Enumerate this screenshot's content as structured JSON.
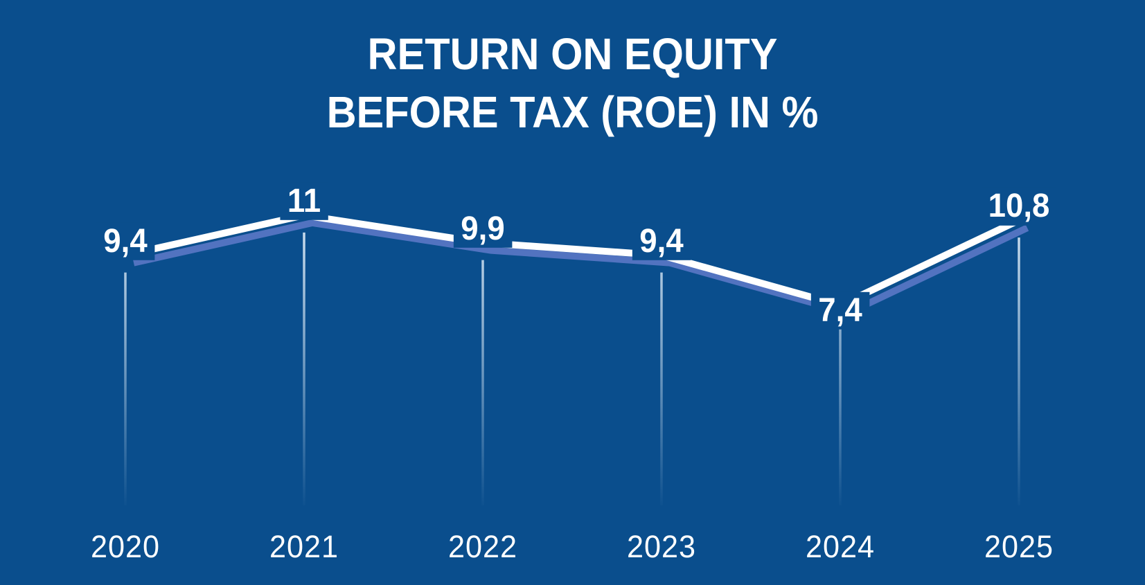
{
  "title": {
    "line1": "RETURN ON EQUITY",
    "line2": "BEFORE TAX (ROE) IN %"
  },
  "chart_data": {
    "type": "line",
    "title": "RETURN ON EQUITY BEFORE TAX (ROE) IN %",
    "categories": [
      "2020",
      "2021",
      "2022",
      "2023",
      "2024",
      "2025"
    ],
    "values": [
      9.4,
      11,
      9.9,
      9.4,
      7.4,
      10.8
    ],
    "value_labels": [
      "9,4",
      "11",
      "9,9",
      "9,4",
      "7,4",
      "10,8"
    ],
    "label_positions": [
      "above",
      "above",
      "above",
      "above",
      "below",
      "above"
    ],
    "decimal_separator": ",",
    "xlabel": "",
    "ylabel": "",
    "ylim": [
      0,
      12
    ],
    "grid": false,
    "legend": false,
    "colors": {
      "background": "#0A4E8D",
      "line": "#FFFFFF",
      "line_shadow": "#5273C0",
      "leader_line": "#D9E8F5",
      "text": "#FFFFFF"
    }
  }
}
